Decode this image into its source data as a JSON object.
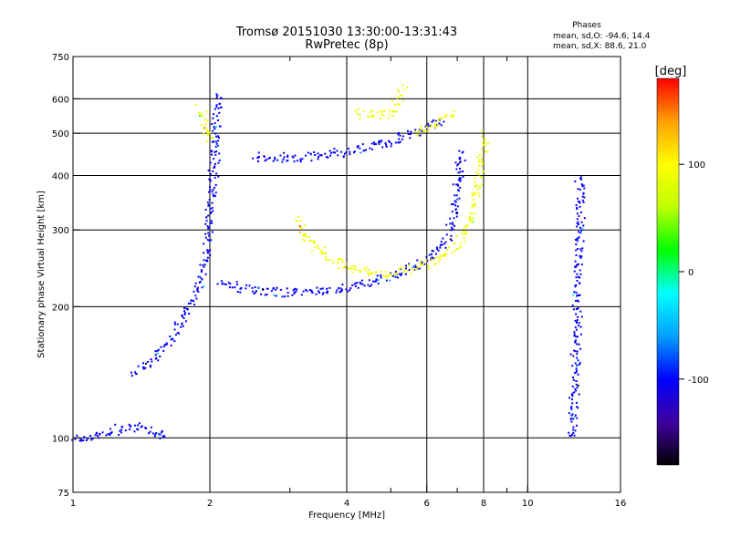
{
  "chart_data": {
    "type": "scatter",
    "title": "Tromsø 20151030 13:30:00-13:31:43",
    "subtitle": "RwPretec (8p)",
    "xlabel": "Frequency [MHz]",
    "ylabel": "Stationary phase Virtual Height [km]",
    "x_scale": "log",
    "y_scale": "log",
    "xlim": [
      1,
      16
    ],
    "ylim": [
      75,
      750
    ],
    "x_ticks": [
      1,
      2,
      4,
      6,
      8,
      10,
      16
    ],
    "x_minor_ticks": [
      3,
      5,
      7,
      9
    ],
    "y_ticks": [
      75,
      100,
      200,
      300,
      400,
      500,
      600,
      750
    ],
    "grid": true,
    "phase_info": {
      "title": "Phases",
      "line_o": "mean, sd,O: -94.6, 14.4",
      "line_x": "mean, sd,X:  88.6, 21.0"
    },
    "colorbar": {
      "label": "[deg]",
      "min": -180,
      "max": 180,
      "ticks": [
        100,
        0,
        -100
      ],
      "colormap": [
        "#000000",
        "#4000a0",
        "#0000ff",
        "#00a0ff",
        "#00ffff",
        "#00ff00",
        "#c0ff00",
        "#ffff00",
        "#ffa000",
        "#ff0000"
      ]
    },
    "traces": [
      {
        "phase_deg": -100,
        "points": [
          [
            1.0,
            100
          ],
          [
            1.1,
            101
          ],
          [
            1.2,
            104
          ],
          [
            1.3,
            106
          ],
          [
            1.4,
            107
          ],
          [
            1.5,
            104
          ],
          [
            1.6,
            101
          ]
        ]
      },
      {
        "phase_deg": -100,
        "points": [
          [
            1.35,
            140
          ],
          [
            1.45,
            148
          ],
          [
            1.55,
            158
          ],
          [
            1.65,
            172
          ],
          [
            1.75,
            190
          ],
          [
            1.85,
            215
          ],
          [
            1.95,
            260
          ],
          [
            2.0,
            330
          ],
          [
            2.05,
            470
          ],
          [
            2.07,
            620
          ]
        ]
      },
      {
        "phase_deg": -100,
        "points": [
          [
            2.1,
            230
          ],
          [
            2.3,
            222
          ],
          [
            2.6,
            218
          ],
          [
            3.0,
            216
          ],
          [
            3.5,
            218
          ],
          [
            4.0,
            222
          ],
          [
            4.5,
            228
          ],
          [
            5.0,
            236
          ],
          [
            5.5,
            245
          ],
          [
            6.0,
            258
          ],
          [
            6.5,
            275
          ],
          [
            6.8,
            310
          ],
          [
            7.0,
            380
          ],
          [
            7.1,
            460
          ]
        ]
      },
      {
        "phase_deg": -100,
        "points": [
          [
            2.5,
            445
          ],
          [
            3.0,
            440
          ],
          [
            3.5,
            445
          ],
          [
            4.0,
            455
          ],
          [
            4.5,
            468
          ],
          [
            5.0,
            482
          ],
          [
            5.5,
            500
          ],
          [
            6.0,
            520
          ],
          [
            6.5,
            545
          ]
        ]
      },
      {
        "phase_deg": 90,
        "points": [
          [
            3.1,
            320
          ],
          [
            3.3,
            285
          ],
          [
            3.6,
            262
          ],
          [
            4.0,
            248
          ],
          [
            4.5,
            240
          ],
          [
            5.0,
            240
          ],
          [
            5.5,
            245
          ],
          [
            6.0,
            252
          ],
          [
            6.5,
            262
          ],
          [
            7.0,
            280
          ],
          [
            7.5,
            320
          ],
          [
            7.8,
            400
          ],
          [
            8.0,
            500
          ]
        ]
      },
      {
        "phase_deg": 90,
        "points": [
          [
            4.2,
            560
          ],
          [
            4.6,
            555
          ],
          [
            5.0,
            560
          ],
          [
            5.2,
            600
          ],
          [
            5.3,
            640
          ]
        ]
      },
      {
        "phase_deg": 90,
        "points": [
          [
            5.6,
            500
          ],
          [
            6.0,
            520
          ],
          [
            6.5,
            540
          ],
          [
            6.9,
            560
          ]
        ]
      },
      {
        "phase_deg": 90,
        "points": [
          [
            1.9,
            570
          ],
          [
            1.95,
            520
          ],
          [
            2.0,
            480
          ]
        ]
      },
      {
        "phase_deg": -100,
        "points": [
          [
            12.5,
            100
          ],
          [
            12.6,
            120
          ],
          [
            12.7,
            150
          ],
          [
            12.8,
            200
          ],
          [
            12.9,
            260
          ],
          [
            13.0,
            330
          ],
          [
            13.0,
            400
          ]
        ]
      }
    ]
  }
}
